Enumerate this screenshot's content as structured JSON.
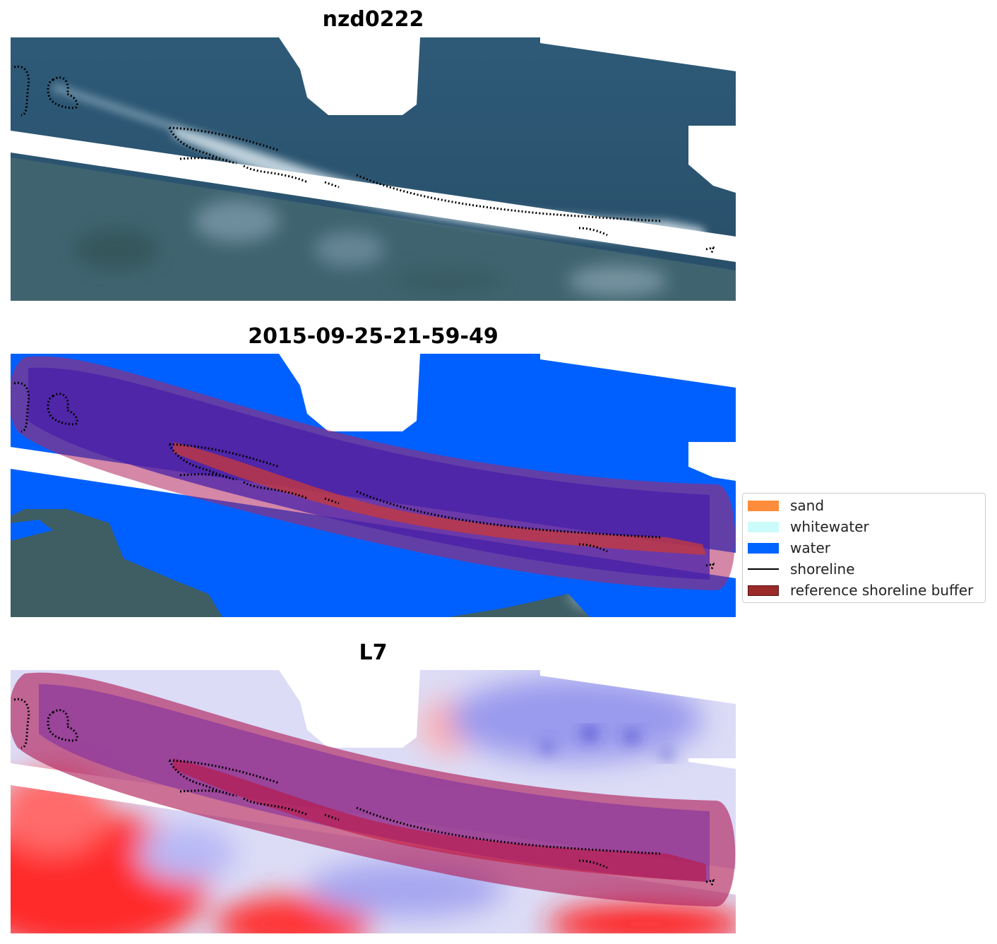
{
  "panels": [
    {
      "title": "nzd0222"
    },
    {
      "title": "2015-09-25-21-59-49"
    },
    {
      "title": "L7"
    }
  ],
  "legend": {
    "items": [
      {
        "label": "sand",
        "color": "#ff8c3a"
      },
      {
        "label": "whitewater",
        "color": "#ccfbfb"
      },
      {
        "label": "water",
        "color": "#0064ff"
      },
      {
        "label": "shoreline",
        "color": "#000000"
      },
      {
        "label": "reference shoreline buffer",
        "color": "#9b2a2a"
      }
    ]
  }
}
